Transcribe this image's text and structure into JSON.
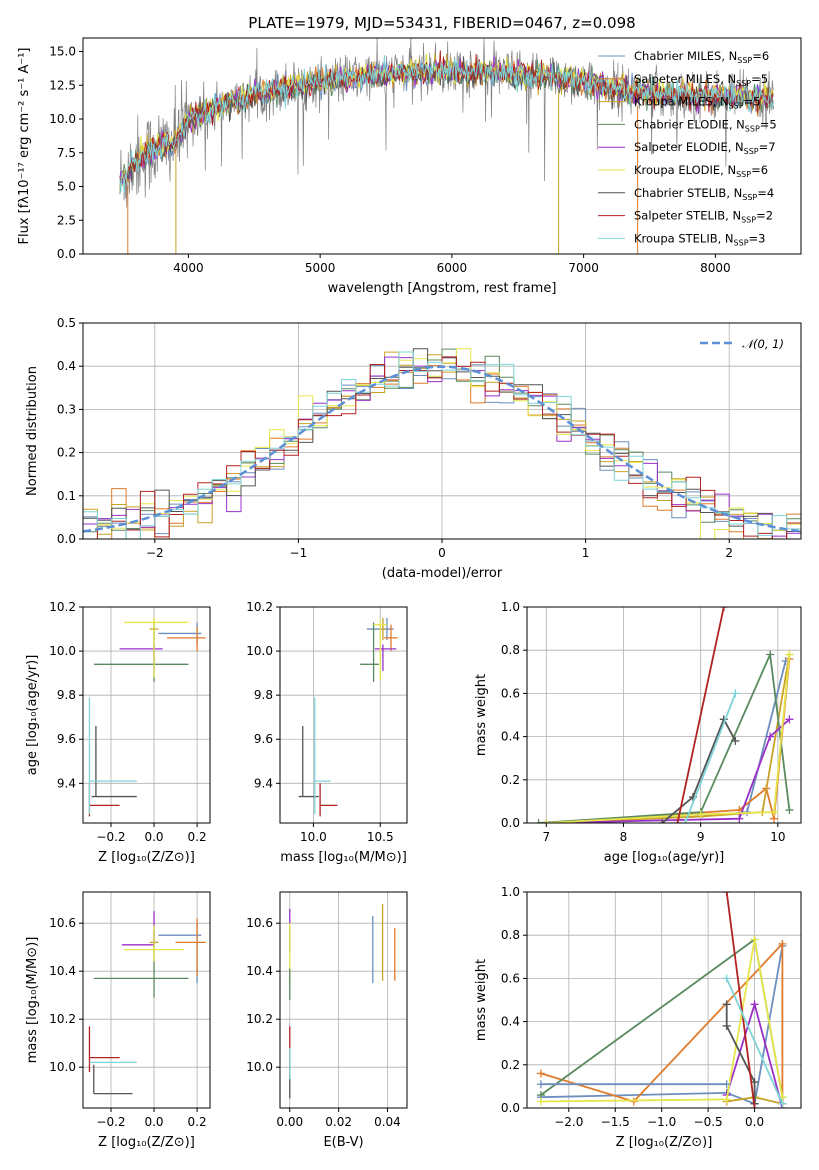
{
  "title": "PLATE=1979, MJD=53431, FIBERID=0467, z=0.098",
  "colors": {
    "chabrier_miles": "#6c8ebf",
    "salpeter_miles": "#e07b2c",
    "kroupa_miles": "#c9a227",
    "chabrier_elodie": "#5a8a5f",
    "salpeter_elodie": "#9b30c8",
    "kroupa_elodie": "#e6e64a",
    "chabrier_stelib": "#555555",
    "salpeter_stelib": "#b22222",
    "kroupa_stelib": "#7fd4d8",
    "gauss": "#5b8fd6"
  },
  "chart_data": [
    {
      "id": "spectrum",
      "type": "line",
      "title": "PLATE=1979, MJD=53431, FIBERID=0467, z=0.098",
      "xlabel": "wavelength [Angstrom, rest frame]",
      "ylabel": "Flux [fλ10⁻¹⁷ erg cm⁻² s⁻¹ A⁻¹]",
      "xlim": [
        3200,
        8650
      ],
      "ylim": [
        0,
        16
      ],
      "xticks": [
        4000,
        5000,
        6000,
        7000,
        8000
      ],
      "yticks": [
        0.0,
        2.5,
        5.0,
        7.5,
        10.0,
        12.5,
        15.0
      ],
      "legend_position": "top-right",
      "series": [
        {
          "name": "Chabrier MILES, N_SSP=6",
          "key": "chabrier_miles"
        },
        {
          "name": "Salpeter MILES, N_SSP=5",
          "key": "salpeter_miles"
        },
        {
          "name": "Kroupa MILES, N_SSP=5",
          "key": "kroupa_miles"
        },
        {
          "name": "Chabrier ELODIE, N_SSP=5",
          "key": "chabrier_elodie"
        },
        {
          "name": "Salpeter ELODIE, N_SSP=7",
          "key": "salpeter_elodie"
        },
        {
          "name": "Kroupa ELODIE, N_SSP=6",
          "key": "kroupa_elodie"
        },
        {
          "name": "Chabrier STELIB, N_SSP=4",
          "key": "chabrier_stelib"
        },
        {
          "name": "Salpeter STELIB, N_SSP=2",
          "key": "salpeter_stelib"
        },
        {
          "name": "Kroupa STELIB, N_SSP=3",
          "key": "kroupa_stelib"
        }
      ],
      "continuum": {
        "x": [
          3500,
          3600,
          3700,
          3800,
          3900,
          4000,
          4200,
          4500,
          4800,
          5000,
          5200,
          5500,
          5800,
          6000,
          6300,
          6600,
          6900,
          7000,
          7200,
          7400,
          7700,
          8000,
          8400
        ],
        "y": [
          5.5,
          7.0,
          7.5,
          8.0,
          8.3,
          10.0,
          10.8,
          11.8,
          12.4,
          12.8,
          13.0,
          13.3,
          13.5,
          13.5,
          13.4,
          13.2,
          13.0,
          12.7,
          12.3,
          12.0,
          11.8,
          11.7,
          11.6
        ]
      }
    },
    {
      "id": "residuals",
      "type": "histogram",
      "xlabel": "(data-model)/error",
      "ylabel": "Normed distribution",
      "xlim": [
        -2.5,
        2.5
      ],
      "ylim": [
        0,
        0.5
      ],
      "xticks": [
        -2,
        -1,
        0,
        1,
        2
      ],
      "yticks": [
        0.0,
        0.1,
        0.2,
        0.3,
        0.4,
        0.5
      ],
      "legend": "𝒩(0, 1)",
      "legend_position": "top-right"
    },
    {
      "id": "age_vs_Z",
      "type": "scatter",
      "xlabel": "Z [log₁₀(Z/Z⊙)]",
      "ylabel": "age  [log₁₀(age/yr)]",
      "xlim": [
        -0.33,
        0.26
      ],
      "ylim": [
        9.22,
        10.2
      ],
      "xticks": [
        -0.2,
        0.0,
        0.2
      ],
      "xticklabels": [
        "−0.2",
        "0.0",
        "0.2"
      ],
      "yticks": [
        9.4,
        9.6,
        9.8,
        10.0,
        10.2
      ],
      "points": [
        {
          "key": "chabrier_miles",
          "x": 0.2,
          "y": 10.08,
          "xerr": [
            0.18,
            0.02
          ],
          "yerr": [
            0.05,
            0.05
          ]
        },
        {
          "key": "salpeter_miles",
          "x": 0.2,
          "y": 10.06,
          "xerr": [
            0.14,
            0.04
          ],
          "yerr": [
            0.06,
            0.05
          ]
        },
        {
          "key": "kroupa_miles",
          "x": 0.0,
          "y": 10.1,
          "xerr": [
            0.02,
            0.02
          ],
          "yerr": [
            0.05,
            0.05
          ]
        },
        {
          "key": "chabrier_elodie",
          "x": 0.0,
          "y": 9.94,
          "xerr": [
            0.28,
            0.16
          ],
          "yerr": [
            0.08,
            0.19
          ]
        },
        {
          "key": "salpeter_elodie",
          "x": 0.0,
          "y": 10.01,
          "xerr": [
            0.16,
            0.04
          ],
          "yerr": [
            0.1,
            0.02
          ]
        },
        {
          "key": "kroupa_elodie",
          "x": 0.0,
          "y": 10.13,
          "xerr": [
            0.14,
            0.16
          ],
          "yerr": [
            0.25,
            0.02
          ]
        },
        {
          "key": "chabrier_stelib",
          "x": -0.27,
          "y": 9.34,
          "xerr": [
            0.02,
            0.19
          ],
          "yerr": [
            0.0,
            0.32
          ]
        },
        {
          "key": "salpeter_stelib",
          "x": -0.3,
          "y": 9.3,
          "xerr": [
            0.0,
            0.14
          ],
          "yerr": [
            0.05,
            0.1
          ]
        },
        {
          "key": "kroupa_stelib",
          "x": -0.3,
          "y": 9.41,
          "xerr": [
            0.0,
            0.22
          ],
          "yerr": [
            0.15,
            0.38
          ]
        }
      ]
    },
    {
      "id": "age_vs_mass",
      "type": "scatter",
      "xlabel": "mass [log₁₀(M/M⊙)]",
      "ylabel": "",
      "xlim": [
        9.75,
        10.7
      ],
      "ylim": [
        9.22,
        10.2
      ],
      "xticks": [
        10.0,
        10.5
      ],
      "yticks": [
        9.4,
        9.6,
        9.8,
        10.0,
        10.2
      ],
      "points": [
        {
          "key": "chabrier_miles",
          "x": 10.55,
          "y": 10.1,
          "xerr": [
            0.15,
            0.05
          ],
          "yerr": [
            0.05,
            0.05
          ]
        },
        {
          "key": "salpeter_miles",
          "x": 10.58,
          "y": 10.06,
          "xerr": [
            0.05,
            0.05
          ],
          "yerr": [
            0.06,
            0.06
          ]
        },
        {
          "key": "kroupa_miles",
          "x": 10.52,
          "y": 10.1,
          "xerr": [
            0.02,
            0.02
          ],
          "yerr": [
            0.05,
            0.05
          ]
        },
        {
          "key": "chabrier_elodie",
          "x": 10.45,
          "y": 9.94,
          "xerr": [
            0.1,
            0.04
          ],
          "yerr": [
            0.08,
            0.19
          ]
        },
        {
          "key": "salpeter_elodie",
          "x": 10.52,
          "y": 10.01,
          "xerr": [
            0.06,
            0.1
          ],
          "yerr": [
            0.1,
            0.02
          ]
        },
        {
          "key": "kroupa_elodie",
          "x": 10.5,
          "y": 10.12,
          "xerr": [
            0.05,
            0.05
          ],
          "yerr": [
            0.25,
            0.02
          ]
        },
        {
          "key": "chabrier_stelib",
          "x": 9.92,
          "y": 9.34,
          "xerr": [
            0.03,
            0.12
          ],
          "yerr": [
            0.0,
            0.32
          ]
        },
        {
          "key": "salpeter_stelib",
          "x": 10.05,
          "y": 9.3,
          "xerr": [
            0.0,
            0.13
          ],
          "yerr": [
            0.05,
            0.1
          ]
        },
        {
          "key": "kroupa_stelib",
          "x": 10.01,
          "y": 9.41,
          "xerr": [
            0.0,
            0.12
          ],
          "yerr": [
            0.15,
            0.38
          ]
        }
      ]
    },
    {
      "id": "weight_vs_age",
      "type": "line",
      "xlabel": "age  [log₁₀(age/yr)]",
      "ylabel": "mass weight",
      "xlim": [
        6.75,
        10.3
      ],
      "ylim": [
        0,
        1.0
      ],
      "xticks": [
        7,
        8,
        9,
        10
      ],
      "yticks": [
        0.0,
        0.2,
        0.4,
        0.6,
        0.8,
        1.0
      ],
      "series": [
        {
          "key": "chabrier_miles",
          "x": [
            7.0,
            9.0,
            9.6,
            10.1
          ],
          "y": [
            0.0,
            0.03,
            0.05,
            0.75
          ]
        },
        {
          "key": "salpeter_miles",
          "x": [
            7.0,
            9.5,
            9.85,
            9.95,
            10.15
          ],
          "y": [
            0.0,
            0.06,
            0.16,
            0.02,
            0.76
          ]
        },
        {
          "key": "kroupa_miles",
          "x": [
            7.0,
            9.0,
            9.8,
            10.15
          ],
          "y": [
            0.0,
            0.03,
            0.05,
            0.78
          ]
        },
        {
          "key": "chabrier_elodie",
          "x": [
            6.9,
            9.0,
            9.9,
            10.15
          ],
          "y": [
            0.0,
            0.05,
            0.78,
            0.06
          ]
        },
        {
          "key": "salpeter_elodie",
          "x": [
            7.0,
            9.5,
            9.9,
            10.15
          ],
          "y": [
            0.0,
            0.02,
            0.4,
            0.48
          ]
        },
        {
          "key": "kroupa_elodie",
          "x": [
            7.0,
            9.0,
            9.95,
            10.15
          ],
          "y": [
            0.0,
            0.04,
            0.05,
            0.78
          ]
        },
        {
          "key": "chabrier_stelib",
          "x": [
            8.5,
            8.9,
            9.3,
            9.45
          ],
          "y": [
            0.0,
            0.12,
            0.48,
            0.38
          ]
        },
        {
          "key": "salpeter_stelib",
          "x": [
            8.7,
            9.3
          ],
          "y": [
            0.0,
            1.0
          ]
        },
        {
          "key": "kroupa_stelib",
          "x": [
            8.8,
            9.45
          ],
          "y": [
            0.0,
            0.6
          ]
        }
      ]
    },
    {
      "id": "mass_vs_Z",
      "type": "scatter",
      "xlabel": "Z [log₁₀(Z/Z⊙)]",
      "ylabel": "mass [log₁₀(M/M⊙)]",
      "xlim": [
        -0.33,
        0.26
      ],
      "ylim": [
        9.83,
        10.73
      ],
      "xticks": [
        -0.2,
        0.0,
        0.2
      ],
      "xticklabels": [
        "−0.2",
        "0.0",
        "0.2"
      ],
      "yticks": [
        10.0,
        10.2,
        10.4,
        10.6
      ],
      "points": [
        {
          "key": "chabrier_miles",
          "x": 0.2,
          "y": 10.55,
          "xerr": [
            0.18,
            0.02
          ],
          "yerr": [
            0.2,
            0.05
          ]
        },
        {
          "key": "salpeter_miles",
          "x": 0.2,
          "y": 10.52,
          "xerr": [
            0.1,
            0.04
          ],
          "yerr": [
            0.14,
            0.1
          ]
        },
        {
          "key": "kroupa_miles",
          "x": 0.0,
          "y": 10.52,
          "xerr": [
            0.02,
            0.02
          ],
          "yerr": [
            0.05,
            0.05
          ]
        },
        {
          "key": "chabrier_elodie",
          "x": 0.0,
          "y": 10.37,
          "xerr": [
            0.28,
            0.16
          ],
          "yerr": [
            0.08,
            0.2
          ]
        },
        {
          "key": "salpeter_elodie",
          "x": 0.0,
          "y": 10.51,
          "xerr": [
            0.15,
            0.0
          ],
          "yerr": [
            0.0,
            0.14
          ]
        },
        {
          "key": "kroupa_elodie",
          "x": 0.0,
          "y": 10.49,
          "xerr": [
            0.14,
            0.14
          ],
          "yerr": [
            0.05,
            0.1
          ]
        },
        {
          "key": "chabrier_stelib",
          "x": -0.28,
          "y": 9.89,
          "xerr": [
            0.0,
            0.18
          ],
          "yerr": [
            0.0,
            0.12
          ]
        },
        {
          "key": "salpeter_stelib",
          "x": -0.3,
          "y": 10.04,
          "xerr": [
            0.0,
            0.14
          ],
          "yerr": [
            0.06,
            0.13
          ]
        },
        {
          "key": "kroupa_stelib",
          "x": -0.3,
          "y": 10.02,
          "xerr": [
            0.0,
            0.22
          ],
          "yerr": [
            0.0,
            0.0
          ]
        }
      ]
    },
    {
      "id": "mass_vs_ebv",
      "type": "scatter",
      "xlabel": "E(B-V)",
      "ylabel": "",
      "xlim": [
        -0.004,
        0.048
      ],
      "ylim": [
        9.83,
        10.73
      ],
      "xticks": [
        0.0,
        0.02,
        0.04
      ],
      "xticklabels": [
        "0.00",
        "0.02",
        "0.04"
      ],
      "yticks": [
        10.0,
        10.2,
        10.4,
        10.6
      ],
      "points": [
        {
          "key": "chabrier_miles",
          "x": 0.034,
          "y": 10.49,
          "yerr": [
            0.14,
            0.14
          ]
        },
        {
          "key": "salpeter_miles",
          "x": 0.043,
          "y": 10.47,
          "yerr": [
            0.11,
            0.11
          ]
        },
        {
          "key": "salpeter_elodie",
          "x": 0.0,
          "y": 10.56,
          "yerr": [
            0.08,
            0.1
          ]
        },
        {
          "key": "kroupa_elodie",
          "x": 0.0,
          "y": 10.44,
          "yerr": [
            0.1,
            0.16
          ]
        },
        {
          "key": "chabrier_elodie",
          "x": 0.0,
          "y": 10.36,
          "yerr": [
            0.08,
            0.05
          ]
        },
        {
          "key": "kroupa_miles",
          "x": 0.038,
          "y": 10.52,
          "yerr": [
            0.16,
            0.16
          ]
        },
        {
          "key": "chabrier_stelib",
          "x": 0.0,
          "y": 9.95,
          "yerr": [
            0.08,
            0.08
          ]
        },
        {
          "key": "salpeter_stelib",
          "x": 0.0,
          "y": 10.07,
          "yerr": [
            0.06,
            0.1
          ]
        },
        {
          "key": "kroupa_stelib",
          "x": 0.0,
          "y": 10.0,
          "yerr": [
            0.05,
            0.08
          ]
        }
      ]
    },
    {
      "id": "weight_vs_Z",
      "type": "line",
      "xlabel": "Z [log₁₀(Z/Z⊙)]",
      "ylabel": "mass weight",
      "xlim": [
        -2.45,
        0.5
      ],
      "ylim": [
        0,
        1.0
      ],
      "xticks": [
        -2.0,
        -1.5,
        -1.0,
        -0.5,
        0.0
      ],
      "xticklabels": [
        "−2.0",
        "−1.5",
        "−1.0",
        "−0.5",
        "0.0"
      ],
      "yticks": [
        0.0,
        0.2,
        0.4,
        0.6,
        0.8,
        1.0
      ],
      "series": [
        {
          "key": "chabrier_miles",
          "x": [
            -2.3,
            -0.3,
            0.0,
            0.3
          ],
          "y": [
            0.05,
            0.07,
            0.02,
            0.75
          ]
        },
        {
          "key": "salpeter_miles",
          "x": [
            -2.3,
            -1.3,
            0.3,
            0.3
          ],
          "y": [
            0.16,
            0.03,
            0.76,
            0.02
          ]
        },
        {
          "key": "kroupa_miles",
          "x": [
            -0.3,
            0.0,
            0.3
          ],
          "y": [
            0.03,
            0.05,
            0.02
          ]
        },
        {
          "key": "chabrier_elodie",
          "x": [
            -2.3,
            0.0,
            0.3
          ],
          "y": [
            0.06,
            0.78,
            0.05
          ]
        },
        {
          "key": "salpeter_elodie",
          "x": [
            -0.3,
            0.0,
            0.3
          ],
          "y": [
            0.06,
            0.48,
            0.0
          ]
        },
        {
          "key": "kroupa_elodie",
          "x": [
            -2.3,
            -0.3,
            0.0,
            0.3
          ],
          "y": [
            0.03,
            0.04,
            0.78,
            0.05
          ]
        },
        {
          "key": "chabrier_stelib",
          "x": [
            -0.3,
            -0.3,
            0.0,
            0.0
          ],
          "y": [
            0.48,
            0.38,
            0.12,
            0.02
          ]
        },
        {
          "key": "salpeter_stelib",
          "x": [
            -0.3,
            0.0
          ],
          "y": [
            1.0,
            0.0
          ]
        },
        {
          "key": "kroupa_stelib",
          "x": [
            -0.3,
            0.3
          ],
          "y": [
            0.6,
            0.02
          ]
        },
        {
          "key": "chabrier_miles",
          "x": [
            -2.3,
            -0.3
          ],
          "y": [
            0.11,
            0.11
          ]
        }
      ]
    }
  ]
}
